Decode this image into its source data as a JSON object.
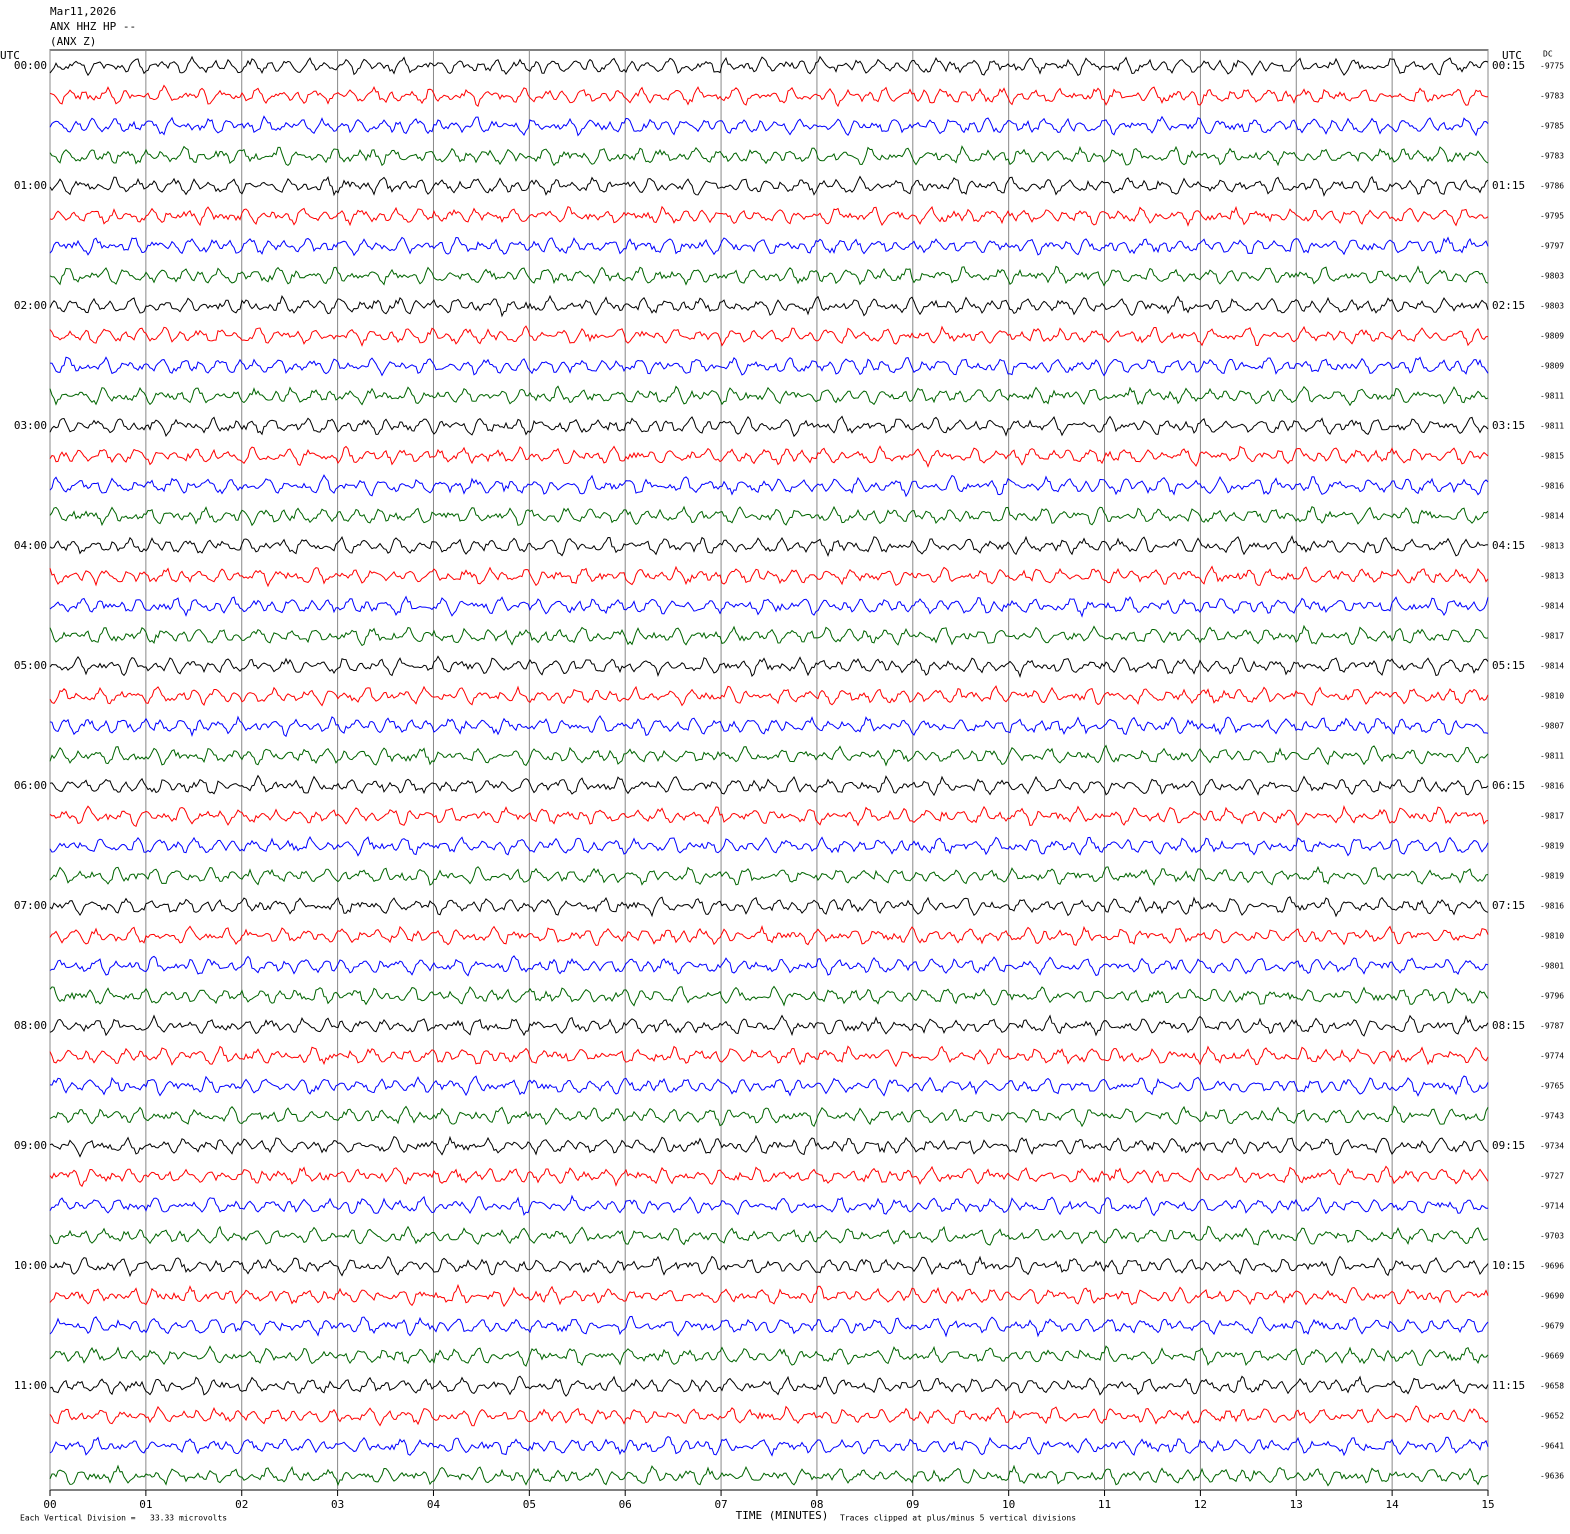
{
  "header": {
    "date": "Mar11,2026",
    "station": "ANX HHZ HP --",
    "component": "(ANX Z)"
  },
  "left_label": "UTC",
  "right_label": "UTC",
  "dc_label": "DC",
  "left_times": [
    "00:00",
    "01:00",
    "02:00",
    "03:00",
    "04:00",
    "05:00",
    "06:00",
    "07:00",
    "08:00",
    "09:00",
    "10:00",
    "11:00"
  ],
  "right_times": [
    "00:15",
    "01:15",
    "02:15",
    "03:15",
    "04:15",
    "05:15",
    "06:15",
    "07:15",
    "08:15",
    "09:15",
    "10:15",
    "11:15"
  ],
  "dc_values": [
    -9775,
    -9783,
    -9785,
    -9783,
    -9786,
    -9795,
    -9797,
    -9803,
    -9803,
    -9809,
    -9809,
    -9811,
    -9811,
    -9815,
    -9816,
    -9814,
    -9813,
    -9813,
    -9814,
    -9817,
    -9814,
    -9810,
    -9807,
    -9811,
    -9816,
    -9817,
    -9819,
    -9819,
    -9816,
    -9810,
    -9801,
    -9796,
    -9787,
    -9774,
    -9765,
    -9743,
    -9734,
    -9727,
    -9714,
    -9703,
    -9696,
    -9690,
    -9679,
    -9669,
    -9658,
    -9652,
    -9641,
    -9636
  ],
  "trace_colors": [
    "#000000",
    "#ff0000",
    "#0000ff",
    "#006400"
  ],
  "x_ticks": [
    "00",
    "01",
    "02",
    "03",
    "04",
    "05",
    "06",
    "07",
    "08",
    "09",
    "10",
    "11",
    "12",
    "13",
    "14",
    "15"
  ],
  "x_label": "TIME (MINUTES)",
  "footer_left": "Each Vertical Division =   33.33 microvolts",
  "footer_right": "Traces clipped at plus/minus 5 vertical divisions"
}
